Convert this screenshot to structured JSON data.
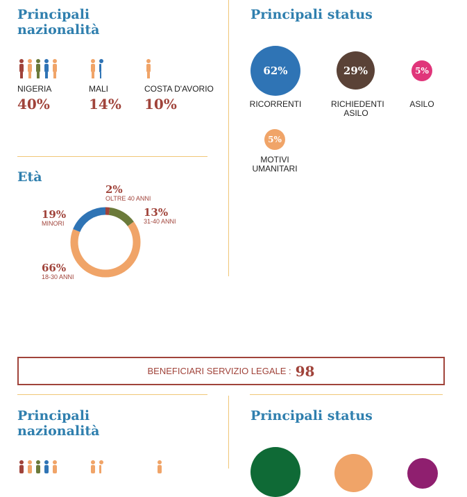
{
  "section1": {
    "nat_title": "Principali\nnazionalità",
    "nationalities": [
      {
        "label": "NIGERIA",
        "pct": "40%"
      },
      {
        "label": "MALI",
        "pct": "14%"
      },
      {
        "label": "COSTA D'AVORIO",
        "pct": "10%"
      }
    ],
    "status_title": "Principali status",
    "statuses": [
      {
        "pct": "62%",
        "label": "RICORRENTI",
        "color": "#2f74b5"
      },
      {
        "pct": "29%",
        "label": "RICHIEDENTI ASILO",
        "color": "#5a4237"
      },
      {
        "pct": "5%",
        "label": "ASILO",
        "color": "#e0357a"
      },
      {
        "pct": "5%",
        "label": "MOTIVI UMANITARI",
        "color": "#f0a468"
      }
    ],
    "age_title": "Età",
    "ages": [
      {
        "pct": "2%",
        "label": "OLTRE 40 ANNI",
        "color": "#a0433a",
        "value": 2
      },
      {
        "pct": "13%",
        "label": "31-40 ANNI",
        "color": "#6b7a3a",
        "value": 13
      },
      {
        "pct": "66%",
        "label": "18-30 ANNI",
        "color": "#f0a468",
        "value": 66
      },
      {
        "pct": "19%",
        "label": "MINORI",
        "color": "#2f74b5",
        "value": 19
      }
    ]
  },
  "banner": {
    "label": "BENEFICIARI SERVIZIO LEGALE :",
    "value": "98"
  },
  "section2": {
    "nat_title": "Principali\nnazionalità",
    "status_title": "Principali status",
    "status_colors": [
      "#0f6a36",
      "#f0a468",
      "#8f1f6f"
    ]
  },
  "icons": {
    "person": "person-icon"
  },
  "colors": {
    "title": "#2f7fae",
    "accent": "#a0433a",
    "divider": "#f0c676"
  }
}
